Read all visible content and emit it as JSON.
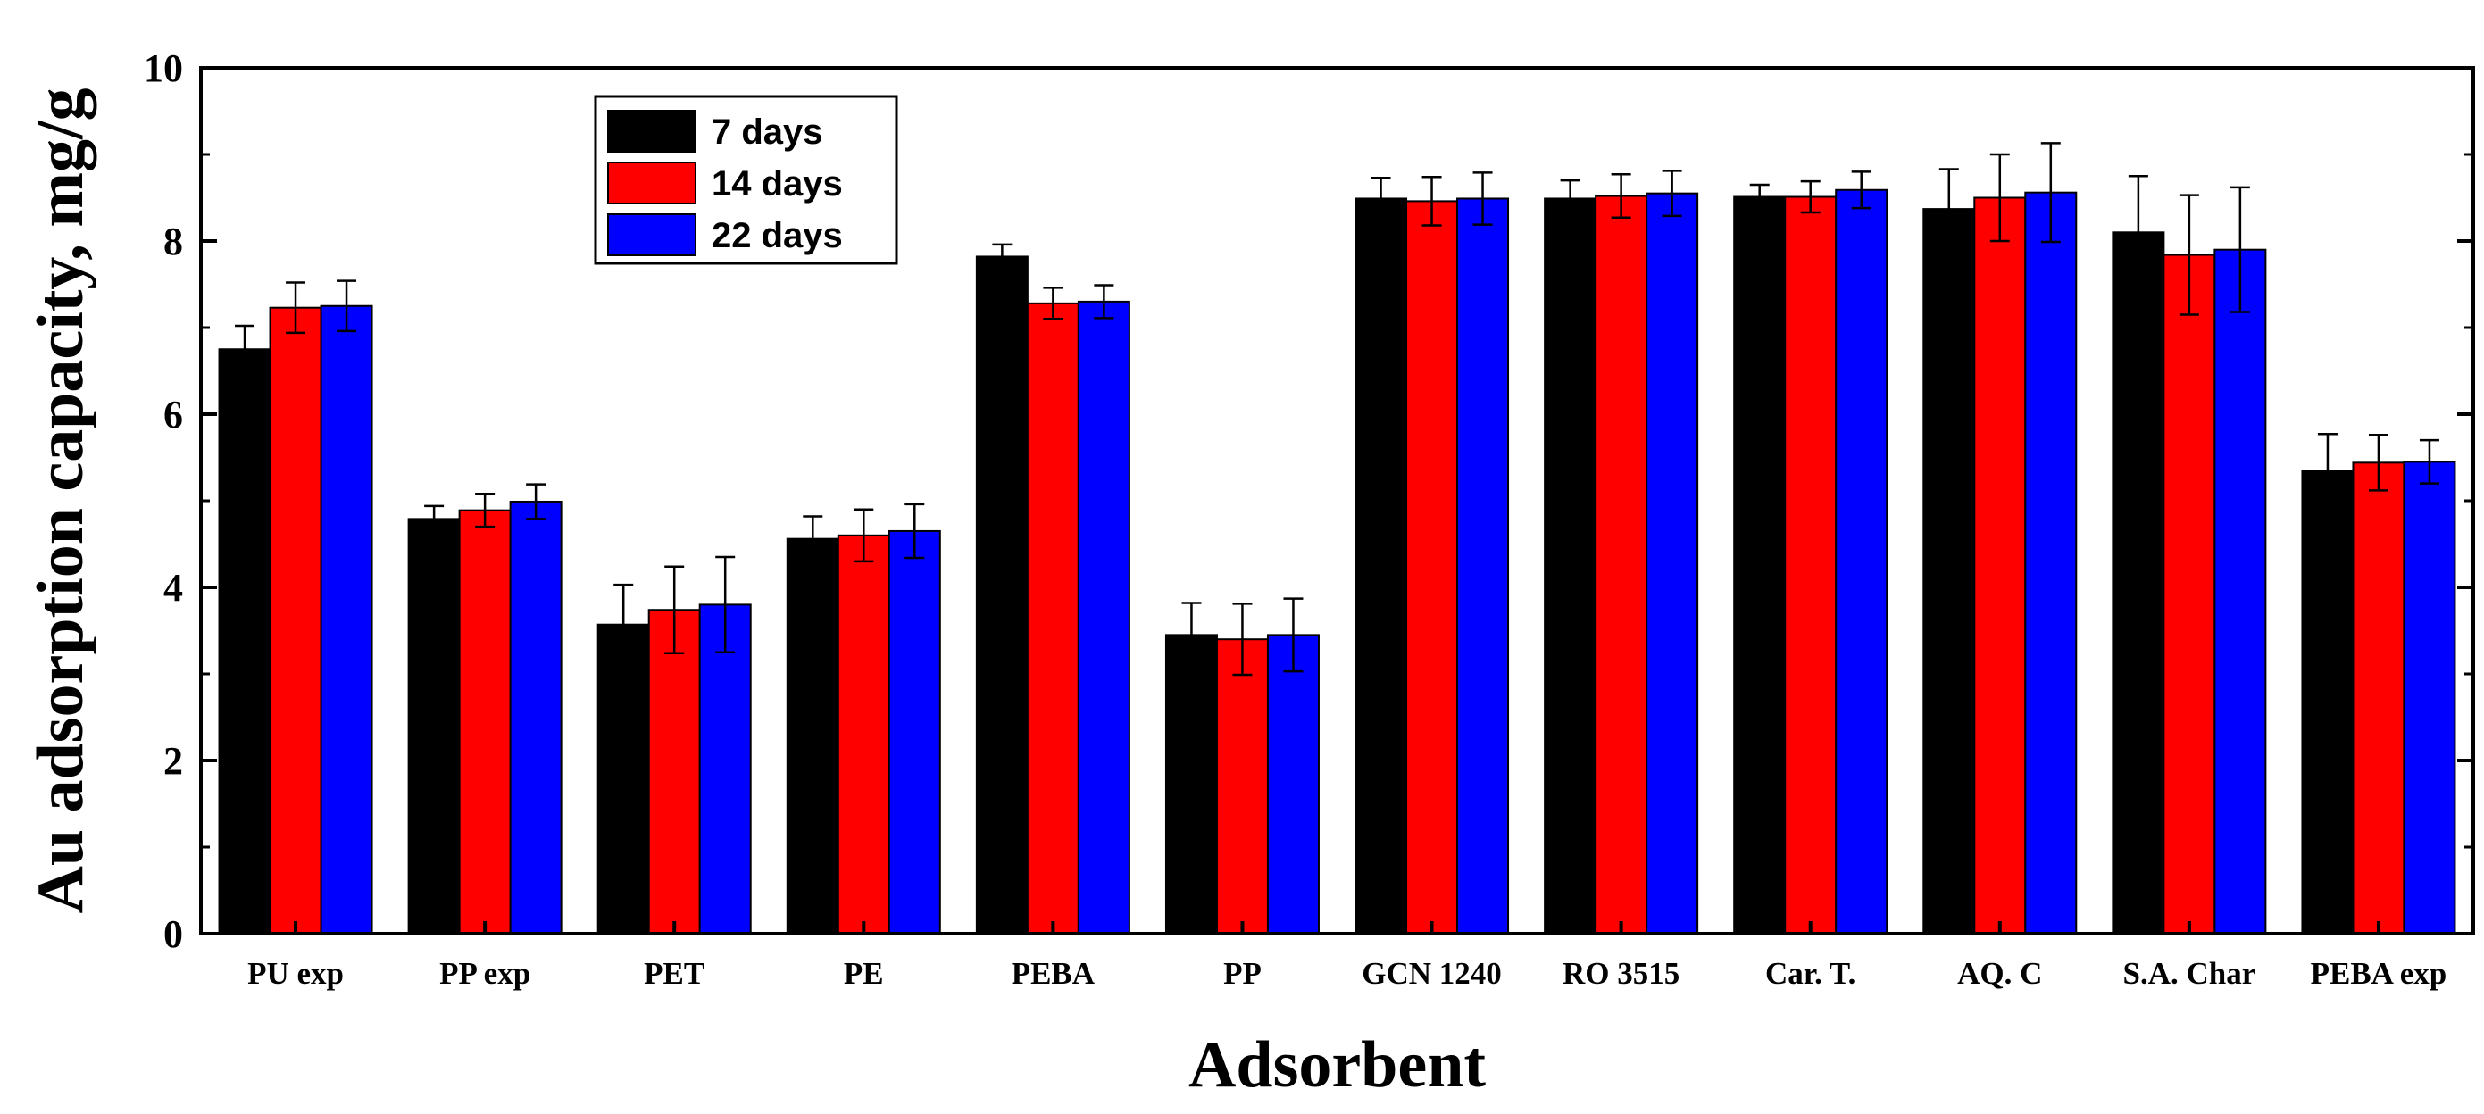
{
  "chart_data": {
    "type": "bar",
    "title": "",
    "xlabel": "Adsorbent",
    "ylabel": "Au adsorption capacity, mg/g",
    "ylim": [
      0,
      10
    ],
    "yticks": [
      0,
      2,
      4,
      6,
      8,
      10
    ],
    "legend_position": "top-left",
    "grid": false,
    "error_bars": true,
    "categories": [
      "PU exp",
      "PP exp",
      "PET",
      "PE",
      "PEBA",
      "PP",
      "GCN 1240",
      "RO 3515",
      "Car. T.",
      "AQ. C",
      "S.A. Char",
      "PEBA exp"
    ],
    "series": [
      {
        "name": "7 days",
        "color": "#000000",
        "values": [
          6.75,
          4.79,
          3.57,
          4.56,
          7.82,
          3.45,
          8.49,
          8.49,
          8.51,
          8.37,
          8.1,
          5.35
        ],
        "errors": [
          0.27,
          0.15,
          0.46,
          0.26,
          0.14,
          0.37,
          0.24,
          0.21,
          0.14,
          0.46,
          0.65,
          0.42
        ]
      },
      {
        "name": "14 days",
        "color": "#ff0000",
        "values": [
          7.23,
          4.89,
          3.74,
          4.6,
          7.28,
          3.4,
          8.46,
          8.52,
          8.51,
          8.5,
          7.84,
          5.44
        ],
        "errors": [
          0.29,
          0.19,
          0.5,
          0.3,
          0.18,
          0.41,
          0.28,
          0.25,
          0.18,
          0.5,
          0.69,
          0.32
        ]
      },
      {
        "name": "22 days",
        "color": "#0000ff",
        "values": [
          7.25,
          4.99,
          3.8,
          4.65,
          7.3,
          3.45,
          8.49,
          8.55,
          8.59,
          8.56,
          7.9,
          5.45
        ],
        "errors": [
          0.29,
          0.2,
          0.55,
          0.31,
          0.19,
          0.42,
          0.3,
          0.26,
          0.21,
          0.57,
          0.72,
          0.25
        ]
      }
    ]
  }
}
